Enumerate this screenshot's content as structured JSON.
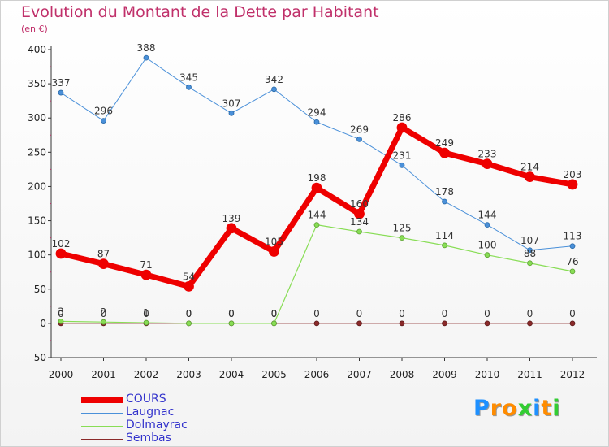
{
  "title": "Evolution du Montant de la Dette par Habitant",
  "subtitle": "(en €)",
  "logo": {
    "text": "Proxiti",
    "colors": [
      "#1e90ff",
      "#ff8c00",
      "#ff8c00",
      "#32cd32",
      "#1e90ff",
      "#ff8c00",
      "#32cd32"
    ]
  },
  "chart_data": {
    "type": "line",
    "title": "Evolution du Montant de la Dette par Habitant",
    "subtitle": "(en €)",
    "x": [
      "2000",
      "2001",
      "2002",
      "2003",
      "2004",
      "2005",
      "2006",
      "2007",
      "2008",
      "2009",
      "2010",
      "2011",
      "2012"
    ],
    "ylim": [
      -50,
      400
    ],
    "yticks": [
      -50,
      0,
      50,
      100,
      150,
      200,
      250,
      300,
      350,
      400
    ],
    "grid": false,
    "legend_position": "bottom-left",
    "series": [
      {
        "name": "COURS",
        "color": "#ee0000",
        "values": [
          102,
          87,
          71,
          54,
          139,
          105,
          198,
          160,
          286,
          249,
          233,
          214,
          203
        ]
      },
      {
        "name": "Laugnac",
        "color": "#4a90d9",
        "values": [
          337,
          296,
          388,
          345,
          307,
          342,
          294,
          269,
          231,
          178,
          144,
          107,
          113
        ]
      },
      {
        "name": "Dolmayrac",
        "color": "#88dd55",
        "values": [
          3,
          2,
          1,
          0,
          0,
          0,
          144,
          134,
          125,
          114,
          100,
          88,
          76
        ]
      },
      {
        "name": "Sembas",
        "color": "#8b2a2a",
        "values": [
          0,
          0,
          0,
          0,
          0,
          0,
          0,
          0,
          0,
          0,
          0,
          0,
          0
        ]
      }
    ]
  }
}
